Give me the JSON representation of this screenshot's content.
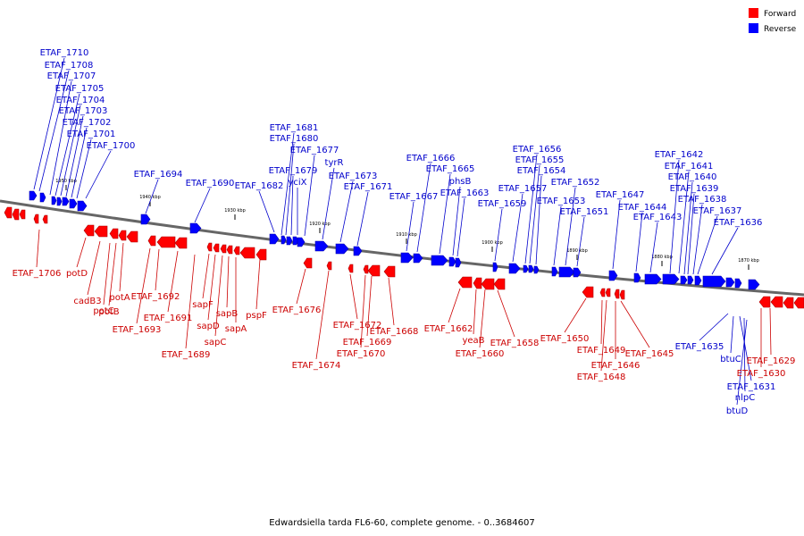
{
  "legend": [
    {
      "label": "Forward",
      "color": "#ff0000"
    },
    {
      "label": "Reverse",
      "color": "#0000ff"
    }
  ],
  "caption": "Edwardsiella tarda FL6-60, complete genome. - 0..3684607",
  "ticks": [
    "1950 kbp",
    "1940 kbp",
    "1930 kbp",
    "1920 kbp",
    "1910 kbp",
    "1900 kbp",
    "1890 kbp",
    "1880 kbp",
    "1870 kbp"
  ],
  "reverse_labels": [
    "ETAF_1710",
    "ETAF_1708",
    "ETAF_1707",
    "ETAF_1705",
    "ETAF_1704",
    "ETAF_1703",
    "ETAF_1702",
    "ETAF_1701",
    "ETAF_1700",
    "ETAF_1694",
    "ETAF_1690",
    "ETAF_1682",
    "ETAF_1681",
    "ETAF_1680",
    "ETAF_1679",
    "yciX",
    "ETAF_1677",
    "tyrR",
    "ETAF_1673",
    "ETAF_1671",
    "ETAF_1667",
    "ETAF_1666",
    "ETAF_1665",
    "phsB",
    "ETAF_1663",
    "ETAF_1659",
    "ETAF_1657",
    "ETAF_1656",
    "ETAF_1655",
    "ETAF_1654",
    "ETAF_1653",
    "ETAF_1652",
    "ETAF_1651",
    "ETAF_1647",
    "ETAF_1644",
    "ETAF_1643",
    "ETAF_1642",
    "ETAF_1641",
    "ETAF_1640",
    "ETAF_1639",
    "ETAF_1638",
    "ETAF_1637",
    "ETAF_1636",
    "ETAF_1635",
    "btuC",
    "ETAF_1631",
    "nlpC",
    "btuD"
  ],
  "forward_labels": [
    "ETAF_1706",
    "potD",
    "cadB3",
    "potC",
    "potB",
    "potA",
    "ETAF_1693",
    "ETAF_1692",
    "ETAF_1691",
    "ETAF_1689",
    "sapF",
    "sapD",
    "sapC",
    "sapB",
    "sapA",
    "pspF",
    "ETAF_1676",
    "ETAF_1674",
    "ETAF_1672",
    "ETAF_1670",
    "ETAF_1669",
    "ETAF_1668",
    "ETAF_1662",
    "yeaB",
    "ETAF_1660",
    "ETAF_1658",
    "ETAF_1650",
    "ETAF_1649",
    "ETAF_1648",
    "ETAF_1646",
    "ETAF_1645",
    "ETAF_1629",
    "ETAF_1630"
  ]
}
